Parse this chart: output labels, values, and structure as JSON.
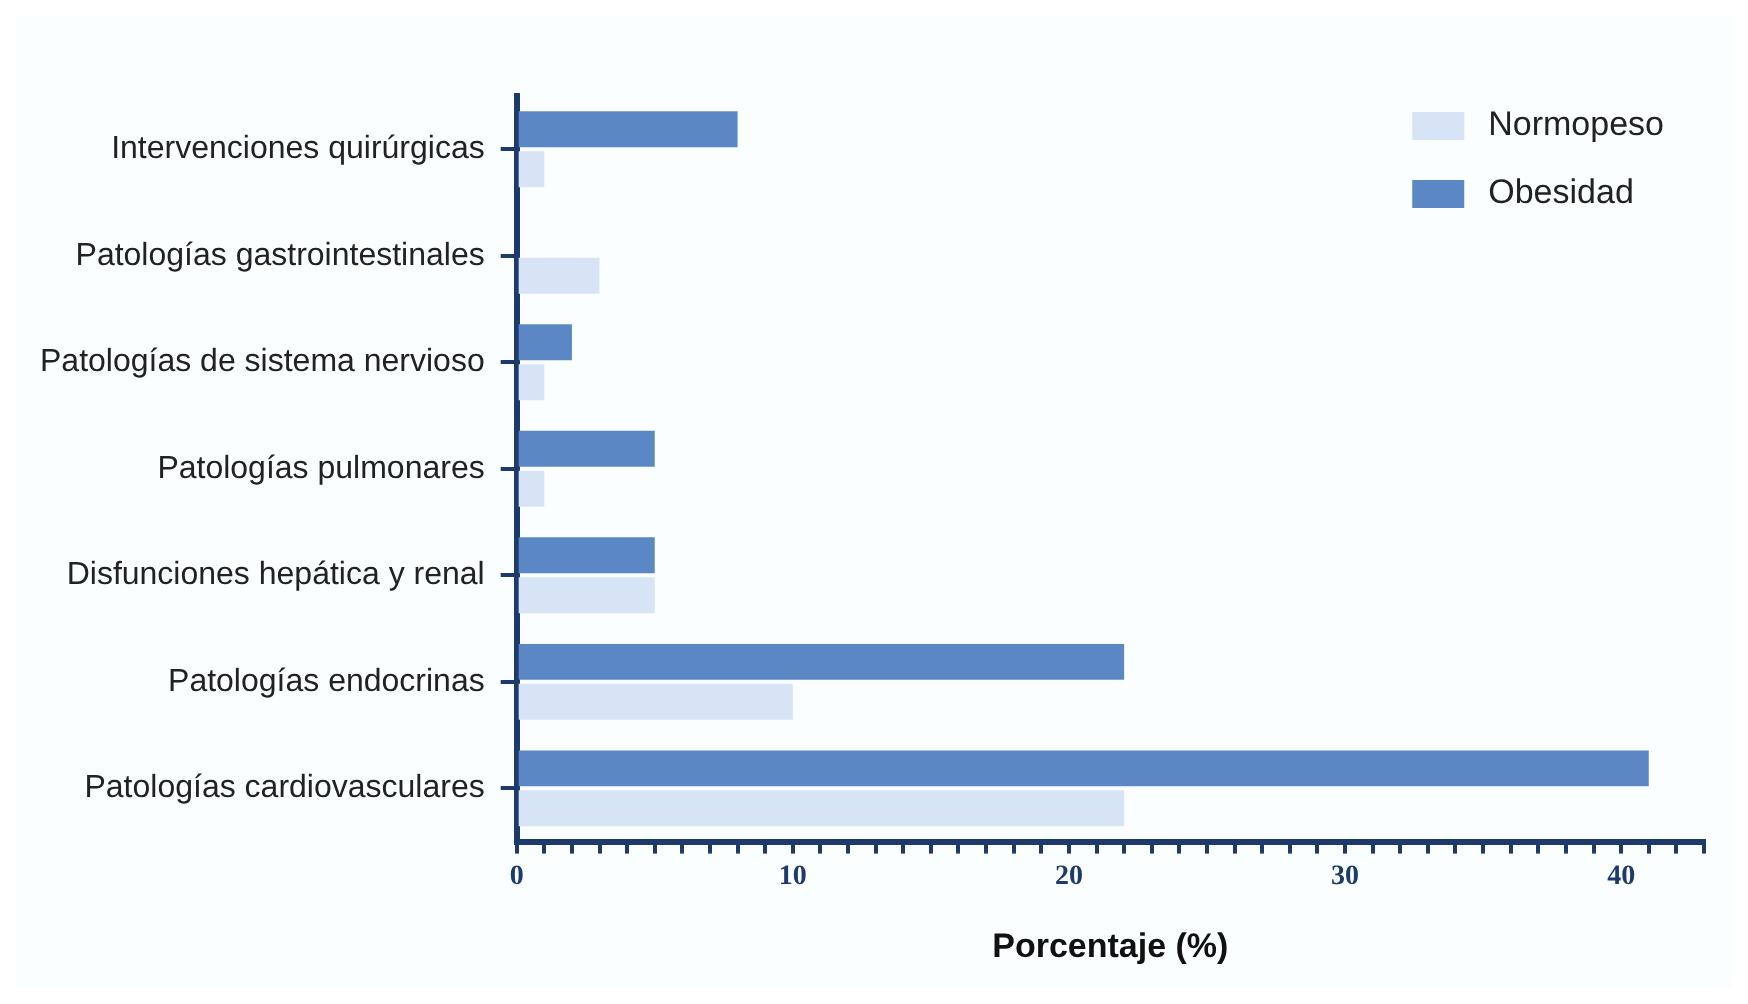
{
  "chart_data": {
    "type": "bar",
    "orientation": "horizontal",
    "xlabel": "Porcentaje (%)",
    "categories": [
      "Intervenciones quirúrgicas",
      "Patologías gastrointestinales",
      "Patologías de sistema nervioso",
      "Patologías pulmonares",
      "Disfunciones hepática y renal",
      "Patologías endocrinas",
      "Patologías cardiovasculares"
    ],
    "series": [
      {
        "name": "Normopeso",
        "color": "#d6e4f5",
        "values": [
          1,
          3,
          1,
          1,
          5,
          10,
          22
        ]
      },
      {
        "name": "Obesidad",
        "color": "#5b88c4",
        "values": [
          8,
          0,
          2,
          5,
          5,
          22,
          41
        ]
      }
    ],
    "xlim": [
      0,
      43
    ],
    "xticks": [
      0,
      {
        "value": 1,
        "label": null
      },
      {
        "value": 2,
        "label": null
      },
      {
        "value": 3,
        "label": null
      },
      {
        "value": 4,
        "label": null
      },
      {
        "value": 5,
        "label": null
      },
      {
        "value": 6,
        "label": null
      },
      {
        "value": 7,
        "label": null
      },
      {
        "value": 8,
        "label": null
      },
      {
        "value": 9,
        "label": null
      },
      10,
      {
        "value": 11,
        "label": null
      },
      {
        "value": 12,
        "label": null
      },
      {
        "value": 13,
        "label": null
      },
      {
        "value": 14,
        "label": null
      },
      {
        "value": 15,
        "label": null
      },
      {
        "value": 16,
        "label": null
      },
      {
        "value": 17,
        "label": null
      },
      {
        "value": 18,
        "label": null
      },
      {
        "value": 19,
        "label": null
      },
      20,
      {
        "value": 21,
        "label": null
      },
      {
        "value": 22,
        "label": null
      },
      {
        "value": 23,
        "label": null
      },
      {
        "value": 24,
        "label": null
      },
      {
        "value": 25,
        "label": null
      },
      {
        "value": 26,
        "label": null
      },
      {
        "value": 27,
        "label": null
      },
      {
        "value": 28,
        "label": null
      },
      {
        "value": 29,
        "label": null
      },
      30,
      {
        "value": 31,
        "label": null
      },
      {
        "value": 32,
        "label": null
      },
      {
        "value": 33,
        "label": null
      },
      {
        "value": 34,
        "label": null
      },
      {
        "value": 35,
        "label": null
      },
      {
        "value": 36,
        "label": null
      },
      {
        "value": 37,
        "label": null
      },
      {
        "value": 38,
        "label": null
      },
      {
        "value": 39,
        "label": null
      },
      40,
      {
        "value": 41,
        "label": null
      },
      {
        "value": 42,
        "label": null
      },
      {
        "value": 43,
        "label": null
      }
    ],
    "grid": false,
    "legend": "top right"
  }
}
